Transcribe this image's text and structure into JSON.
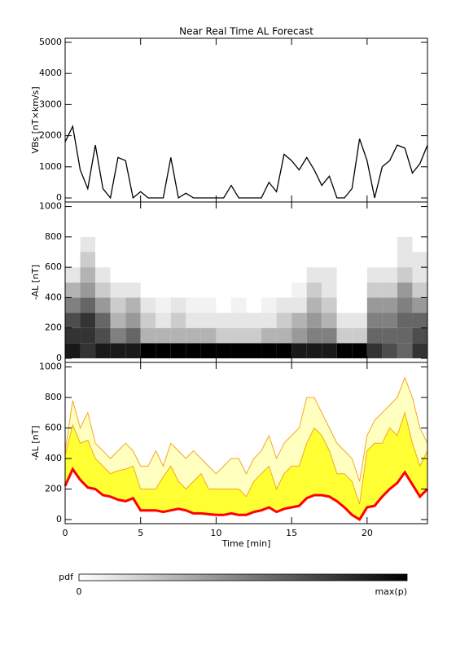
{
  "chart_data": [
    {
      "type": "line",
      "title": "Near Real Time AL Forecast",
      "ylabel": "VBs [nT×km/s]",
      "color": "#000000",
      "xlim": [
        0,
        24
      ],
      "ylim": [
        -130,
        5130
      ],
      "yticks": [
        0,
        1000,
        2000,
        3000,
        4000,
        5000
      ],
      "x": [
        0,
        0.5,
        1,
        1.5,
        2,
        2.5,
        3,
        3.5,
        4,
        4.5,
        5,
        5.5,
        6,
        6.5,
        7,
        7.5,
        8,
        8.5,
        9,
        9.5,
        10,
        10.5,
        11,
        11.5,
        12,
        12.5,
        13,
        13.5,
        14,
        14.5,
        15,
        15.5,
        16,
        16.5,
        17,
        17.5,
        18,
        18.5,
        19,
        19.5,
        20,
        20.5,
        21,
        21.5,
        22,
        22.5,
        23,
        23.5,
        24
      ],
      "values": [
        1800,
        2300,
        900,
        300,
        1700,
        300,
        0,
        1300,
        1200,
        0,
        200,
        0,
        0,
        0,
        1300,
        0,
        150,
        0,
        0,
        0,
        0,
        0,
        400,
        0,
        0,
        0,
        0,
        500,
        200,
        1400,
        1200,
        900,
        1300,
        900,
        400,
        700,
        0,
        0,
        300,
        1900,
        1200,
        0,
        1000,
        1200,
        1700,
        1600,
        800,
        1100,
        1700
      ]
    },
    {
      "type": "heatmap",
      "ylabel": "-AL [nT]",
      "xlim": [
        0,
        24
      ],
      "ylim": [
        -27,
        1030
      ],
      "yticks": [
        0,
        200,
        400,
        600,
        800,
        1000
      ],
      "x_bins": [
        0,
        1,
        2,
        3,
        4,
        5,
        6,
        7,
        8,
        9,
        10,
        11,
        12,
        13,
        14,
        15,
        16,
        17,
        18,
        19,
        20,
        21,
        22,
        23,
        24
      ],
      "y_bins": [
        0,
        100,
        200,
        300,
        400,
        500,
        600,
        700,
        800
      ],
      "values": [
        [
          0.9,
          0.8,
          0.7,
          0.5,
          0.3,
          0.1,
          0,
          0
        ],
        [
          0.8,
          0.8,
          0.8,
          0.6,
          0.4,
          0.3,
          0.2,
          0.1
        ],
        [
          0.9,
          0.7,
          0.6,
          0.4,
          0.2,
          0.1,
          0,
          0
        ],
        [
          0.9,
          0.5,
          0.3,
          0.2,
          0.1,
          0,
          0,
          0
        ],
        [
          0.9,
          0.6,
          0.4,
          0.3,
          0.1,
          0,
          0,
          0
        ],
        [
          1,
          0.3,
          0.2,
          0.1,
          0,
          0,
          0,
          0
        ],
        [
          1,
          0.3,
          0.1,
          0.05,
          0,
          0,
          0,
          0
        ],
        [
          1,
          0.3,
          0.2,
          0.1,
          0,
          0,
          0,
          0
        ],
        [
          1,
          0.3,
          0.1,
          0.05,
          0,
          0,
          0,
          0
        ],
        [
          1,
          0.3,
          0.1,
          0.05,
          0,
          0,
          0,
          0
        ],
        [
          1,
          0.2,
          0.1,
          0,
          0,
          0,
          0,
          0
        ],
        [
          1,
          0.2,
          0.1,
          0.05,
          0,
          0,
          0,
          0
        ],
        [
          1,
          0.2,
          0.1,
          0,
          0,
          0,
          0,
          0
        ],
        [
          1,
          0.3,
          0.1,
          0.05,
          0,
          0,
          0,
          0
        ],
        [
          1,
          0.3,
          0.2,
          0.1,
          0,
          0,
          0,
          0
        ],
        [
          0.9,
          0.4,
          0.3,
          0.1,
          0.05,
          0,
          0,
          0
        ],
        [
          0.9,
          0.5,
          0.4,
          0.3,
          0.2,
          0.1,
          0,
          0
        ],
        [
          0.9,
          0.5,
          0.3,
          0.2,
          0.1,
          0.1,
          0,
          0
        ],
        [
          1,
          0.2,
          0.1,
          0,
          0,
          0,
          0,
          0
        ],
        [
          1,
          0.2,
          0.1,
          0,
          0,
          0,
          0,
          0
        ],
        [
          0.8,
          0.6,
          0.5,
          0.4,
          0.2,
          0.1,
          0,
          0
        ],
        [
          0.7,
          0.6,
          0.5,
          0.4,
          0.2,
          0.1,
          0,
          0
        ],
        [
          0.6,
          0.6,
          0.6,
          0.5,
          0.4,
          0.2,
          0.1,
          0.1
        ],
        [
          0.8,
          0.7,
          0.6,
          0.4,
          0.2,
          0.1,
          0.1,
          0
        ]
      ]
    },
    {
      "type": "band",
      "ylabel": "-AL [nT]",
      "xlabel": "Time [min]",
      "xlim": [
        0,
        24
      ],
      "ylim": [
        -27,
        1030
      ],
      "yticks": [
        0,
        200,
        400,
        600,
        800,
        1000
      ],
      "xticks": [
        0,
        5,
        10,
        15,
        20
      ],
      "x": [
        0,
        0.5,
        1,
        1.5,
        2,
        2.5,
        3,
        3.5,
        4,
        4.5,
        5,
        5.5,
        6,
        6.5,
        7,
        7.5,
        8,
        8.5,
        9,
        9.5,
        10,
        10.5,
        11,
        11.5,
        12,
        12.5,
        13,
        13.5,
        14,
        14.5,
        15,
        15.5,
        16,
        16.5,
        17,
        17.5,
        18,
        18.5,
        19,
        19.5,
        20,
        20.5,
        21,
        21.5,
        22,
        22.5,
        23,
        23.5,
        24
      ],
      "series": [
        {
          "color": "#f5a623",
          "fill": "#ffffc0",
          "width": 1,
          "values": [
            450,
            780,
            600,
            700,
            500,
            450,
            400,
            450,
            500,
            450,
            350,
            350,
            450,
            350,
            500,
            450,
            400,
            450,
            400,
            350,
            300,
            350,
            400,
            400,
            300,
            400,
            450,
            550,
            400,
            500,
            550,
            600,
            800,
            800,
            700,
            600,
            500,
            450,
            400,
            250,
            550,
            650,
            700,
            750,
            800,
            930,
            800,
            600,
            500
          ]
        },
        {
          "color": "#f5a623",
          "fill": "#ffff33",
          "width": 1,
          "values": [
            420,
            620,
            500,
            520,
            400,
            350,
            300,
            320,
            330,
            350,
            200,
            200,
            200,
            280,
            350,
            250,
            200,
            250,
            300,
            200,
            200,
            200,
            200,
            200,
            150,
            250,
            300,
            350,
            200,
            300,
            350,
            350,
            500,
            600,
            550,
            450,
            300,
            300,
            250,
            100,
            450,
            500,
            500,
            600,
            550,
            700,
            500,
            350,
            450
          ]
        },
        {
          "color": "#ff0000",
          "fill": "#ffffff",
          "width": 3,
          "values": [
            220,
            330,
            260,
            210,
            200,
            160,
            150,
            130,
            120,
            140,
            60,
            60,
            60,
            50,
            60,
            70,
            60,
            40,
            40,
            35,
            30,
            30,
            40,
            30,
            30,
            50,
            60,
            80,
            50,
            70,
            80,
            90,
            140,
            160,
            160,
            150,
            120,
            80,
            30,
            0,
            80,
            90,
            150,
            200,
            240,
            310,
            230,
            150,
            200
          ]
        }
      ]
    }
  ],
  "colorbar": {
    "label": "pdf",
    "min_label": "0",
    "max_label": "max(p)"
  }
}
